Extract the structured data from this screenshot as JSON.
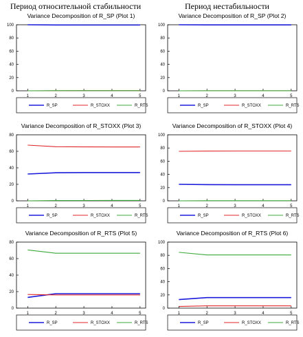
{
  "headers": {
    "left": "Период относительной стабильности",
    "right": "Период нестабильности"
  },
  "colors": {
    "R_SP": "#1a1adc",
    "R_STOXX": "#e0262a",
    "R_RTS": "#3aa838"
  },
  "chart_data": [
    {
      "type": "line",
      "title": "Variance Decomposition of R_SP (Plot 1)",
      "x": [
        1,
        2,
        3,
        4,
        5
      ],
      "ylim": [
        0,
        100
      ],
      "yticks": [
        0,
        20,
        40,
        60,
        80,
        100
      ],
      "grid": false,
      "legend": "bottom",
      "series": [
        {
          "name": "R_SP",
          "values": [
            100,
            99.7,
            99.6,
            99.6,
            99.6
          ]
        },
        {
          "name": "R_STOXX",
          "values": [
            0,
            0.1,
            0.2,
            0.2,
            0.2
          ]
        },
        {
          "name": "R_RTS",
          "values": [
            0,
            0.2,
            0.2,
            0.2,
            0.2
          ]
        }
      ]
    },
    {
      "type": "line",
      "title": "Variance Decomposition of R_SP (Plot 2)",
      "x": [
        1,
        2,
        3,
        4,
        5
      ],
      "ylim": [
        0,
        100
      ],
      "yticks": [
        0,
        20,
        40,
        60,
        80,
        100
      ],
      "grid": false,
      "legend": "bottom",
      "series": [
        {
          "name": "R_SP",
          "values": [
            100,
            99.8,
            99.8,
            99.8,
            99.8
          ]
        },
        {
          "name": "R_STOXX",
          "values": [
            0,
            0.1,
            0.1,
            0.1,
            0.1
          ]
        },
        {
          "name": "R_RTS",
          "values": [
            0,
            0.1,
            0.1,
            0.1,
            0.1
          ]
        }
      ]
    },
    {
      "type": "line",
      "title": "Variance Decomposition of R_STOXX (Plot 3)",
      "x": [
        1,
        2,
        3,
        4,
        5
      ],
      "ylim": [
        0,
        80
      ],
      "yticks": [
        0,
        20,
        40,
        60,
        80
      ],
      "grid": false,
      "legend": "bottom",
      "series": [
        {
          "name": "R_SP",
          "values": [
            32.5,
            34,
            34.2,
            34.2,
            34.2
          ]
        },
        {
          "name": "R_STOXX",
          "values": [
            67.5,
            65.6,
            65.4,
            65.3,
            65.3
          ]
        },
        {
          "name": "R_RTS",
          "values": [
            0,
            0.4,
            0.4,
            0.5,
            0.5
          ]
        }
      ]
    },
    {
      "type": "line",
      "title": "Variance Decomposition of R_STOXX (Plot 4)",
      "x": [
        1,
        2,
        3,
        4,
        5
      ],
      "ylim": [
        0,
        100
      ],
      "yticks": [
        0,
        20,
        40,
        60,
        80,
        100
      ],
      "grid": false,
      "legend": "bottom",
      "series": [
        {
          "name": "R_SP",
          "values": [
            25,
            24.5,
            24.4,
            24.4,
            24.4
          ]
        },
        {
          "name": "R_STOXX",
          "values": [
            75,
            75.3,
            75.4,
            75.4,
            75.4
          ]
        },
        {
          "name": "R_RTS",
          "values": [
            0,
            0.2,
            0.2,
            0.2,
            0.2
          ]
        }
      ]
    },
    {
      "type": "line",
      "title": "Variance Decomposition of R_RTS (Plot 5)",
      "x": [
        1,
        2,
        3,
        4,
        5
      ],
      "ylim": [
        0,
        80
      ],
      "yticks": [
        0,
        20,
        40,
        60,
        80
      ],
      "grid": false,
      "legend": "bottom",
      "series": [
        {
          "name": "R_SP",
          "values": [
            13,
            17.5,
            17.5,
            17.5,
            17.5
          ]
        },
        {
          "name": "R_STOXX",
          "values": [
            16.5,
            16,
            16,
            16,
            16
          ]
        },
        {
          "name": "R_RTS",
          "values": [
            70.5,
            66.5,
            66.5,
            66.5,
            66.5
          ]
        }
      ]
    },
    {
      "type": "line",
      "title": "Variance Decomposition of R_RTS (Plot 6)",
      "x": [
        1,
        2,
        3,
        4,
        5
      ],
      "ylim": [
        0,
        100
      ],
      "yticks": [
        0,
        20,
        40,
        60,
        80,
        100
      ],
      "grid": false,
      "legend": "bottom",
      "series": [
        {
          "name": "R_SP",
          "values": [
            13,
            16,
            16,
            16,
            16
          ]
        },
        {
          "name": "R_STOXX",
          "values": [
            2.5,
            3.5,
            3.5,
            3.5,
            3.5
          ]
        },
        {
          "name": "R_RTS",
          "values": [
            84.5,
            80.5,
            80.5,
            80.5,
            80.5
          ]
        }
      ]
    }
  ]
}
